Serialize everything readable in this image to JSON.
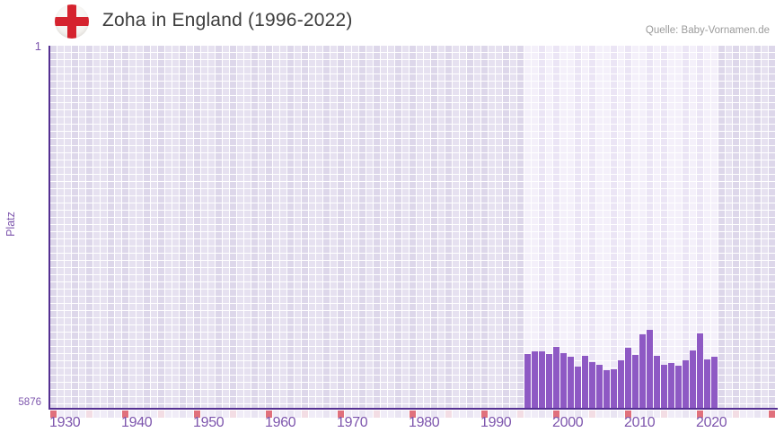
{
  "header": {
    "title": "Zoha in England (1996-2022)",
    "source": "Quelle: Baby-Vornamen.de",
    "flag_icon": "england-flag-icon"
  },
  "axes": {
    "y_label": "Platz",
    "y_top_tick": "1",
    "y_bottom_tick": "5876",
    "x_ticks": [
      "1930",
      "1940",
      "1950",
      "1960",
      "1970",
      "1980",
      "1990",
      "2000",
      "2010",
      "2020"
    ]
  },
  "chart_data": {
    "type": "bar",
    "title": "Zoha in England (1996-2022)",
    "xlabel": "",
    "ylabel": "Platz",
    "x_domain": [
      1930,
      2030
    ],
    "ylim": [
      1,
      5876
    ],
    "y_inverted": true,
    "grid": true,
    "highlight_band": {
      "start_year": 1996,
      "end_year": 2022
    },
    "categories": [
      1996,
      1997,
      1998,
      1999,
      2000,
      2001,
      2002,
      2003,
      2004,
      2005,
      2006,
      2007,
      2008,
      2009,
      2010,
      2011,
      2012,
      2013,
      2014,
      2015,
      2016,
      2017,
      2018,
      2019,
      2020,
      2021,
      2022
    ],
    "values": [
      5000,
      4965,
      4960,
      5010,
      4880,
      4995,
      5050,
      5210,
      5035,
      5130,
      5180,
      5260,
      5245,
      5110,
      4895,
      5015,
      4680,
      4615,
      5035,
      5175,
      5155,
      5190,
      5105,
      4945,
      4665,
      5090,
      5045
    ],
    "marker_rules": {
      "decade_marker_years": "every year divisible by 10",
      "half_decade_marker_years": "every year divisible by 5"
    }
  },
  "colors": {
    "bar": "#8e59c4",
    "axis": "#553092",
    "tick_label": "#7d55ad",
    "title_text": "#3d3d3d",
    "source_text": "#9b9b9b",
    "grid_out_light": "#e6e1f0",
    "grid_out_dark": "#ddd7ea",
    "grid_in_light": "#f4f0fa",
    "grid_in_dark": "#ebe5f5",
    "below_default_light": "#f0ecf7",
    "below_default_dark": "#e9e4f2",
    "below_half_decade": "#f3dde4",
    "below_decade": "#e0707c",
    "flag_cross": "#d5232e",
    "flag_bg": "#f5f3f0"
  }
}
